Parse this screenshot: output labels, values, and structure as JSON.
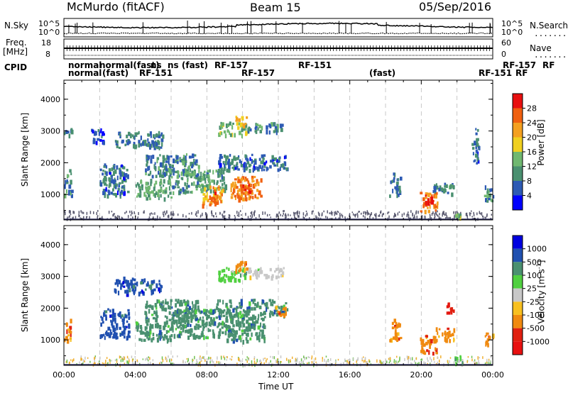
{
  "header": {
    "station": "McMurdo (fitACF)",
    "beam": "Beam 15",
    "date": "05/Sep/2016"
  },
  "side_labels": {
    "nsky": "N.Sky",
    "nsearch": "N.Search",
    "freq": "Freq.",
    "freq_unit": "[MHz]",
    "nave": "Nave",
    "cpid": "CPID",
    "dots": "......."
  },
  "tick_labels": {
    "ns_top": "10^5",
    "ns_bottom": "10^0",
    "nsr_top": "10^5",
    "nsr_bottom": "10^0",
    "freq_top": "18",
    "freq_bottom": "8",
    "nave_top": "60",
    "nave_bottom": "0"
  },
  "cpid": {
    "row1": [
      "normal",
      "normal(fast)",
      "ns",
      "ns (fast)",
      "RF-157",
      "RF-151",
      "RF-157",
      "RF"
    ],
    "row2": [
      "normal",
      "(fast)",
      "RF-151",
      "RF-157",
      "(fast)",
      "RF-151",
      "RF"
    ]
  },
  "colors": {
    "power": [
      "#0000ff",
      "#2d5ab4",
      "#4a9070",
      "#70b870",
      "#f0d020",
      "#f4a020",
      "#f06010",
      "#e81010"
    ],
    "velocity": [
      "#0000e0",
      "#2050b0",
      "#4a9070",
      "#50d040",
      "#c8c8c8",
      "#f8c020",
      "#f08a10",
      "#e02010",
      "#e81010"
    ],
    "noise": "#5a5a70"
  },
  "chart_data": [
    {
      "type": "heatmap",
      "name": "power",
      "xlabel": "",
      "ylabel": "Slant Range [km]",
      "x_range_hours": [
        0,
        24
      ],
      "ylim_km": [
        200,
        4600
      ],
      "yticks": [
        1000,
        2000,
        3000,
        4000
      ],
      "colorbar": {
        "label": "Power [dB]",
        "ticks": [
          4,
          8,
          12,
          16,
          20,
          24,
          28
        ],
        "range": [
          0,
          32
        ]
      },
      "blobs": [
        {
          "t0": 0.0,
          "t1": 0.4,
          "r0": 2800,
          "r1": 3100,
          "v": 8
        },
        {
          "t0": 0.0,
          "t1": 0.4,
          "r0": 1000,
          "r1": 1800,
          "v": 10
        },
        {
          "t0": 1.5,
          "t1": 2.2,
          "r0": 2600,
          "r1": 3100,
          "v": 6
        },
        {
          "t0": 2.0,
          "t1": 3.6,
          "r0": 1000,
          "r1": 2000,
          "v": 7
        },
        {
          "t0": 2.8,
          "t1": 5.5,
          "r0": 2500,
          "r1": 3000,
          "v": 8
        },
        {
          "t0": 4.0,
          "t1": 6.0,
          "r0": 900,
          "r1": 1500,
          "v": 12
        },
        {
          "t0": 4.5,
          "t1": 7.5,
          "r0": 1600,
          "r1": 2300,
          "v": 9
        },
        {
          "t0": 6.0,
          "t1": 9.0,
          "r0": 1100,
          "r1": 1800,
          "v": 11
        },
        {
          "t0": 7.7,
          "t1": 8.9,
          "r0": 700,
          "r1": 1300,
          "v": 22
        },
        {
          "t0": 8.2,
          "t1": 8.6,
          "r0": 800,
          "r1": 1100,
          "v": 27
        },
        {
          "t0": 9.3,
          "t1": 11.0,
          "r0": 900,
          "r1": 1600,
          "v": 24
        },
        {
          "t0": 9.8,
          "t1": 10.5,
          "r0": 1000,
          "r1": 1400,
          "v": 26
        },
        {
          "t0": 8.5,
          "t1": 12.5,
          "r0": 1800,
          "r1": 2300,
          "v": 7
        },
        {
          "t0": 8.6,
          "t1": 10.2,
          "r0": 2900,
          "r1": 3300,
          "v": 14
        },
        {
          "t0": 9.5,
          "t1": 10.2,
          "r0": 3200,
          "r1": 3500,
          "v": 20
        },
        {
          "t0": 10.2,
          "t1": 12.3,
          "r0": 3000,
          "r1": 3300,
          "v": 9
        },
        {
          "t0": 18.2,
          "t1": 18.8,
          "r0": 1000,
          "r1": 1700,
          "v": 8
        },
        {
          "t0": 19.9,
          "t1": 20.9,
          "r0": 500,
          "r1": 1100,
          "v": 24
        },
        {
          "t0": 20.2,
          "t1": 20.6,
          "r0": 700,
          "r1": 1000,
          "v": 28
        },
        {
          "t0": 20.6,
          "t1": 21.8,
          "r0": 1000,
          "r1": 1400,
          "v": 9
        },
        {
          "t0": 21.8,
          "t1": 22.2,
          "r0": 300,
          "r1": 500,
          "v": 14
        },
        {
          "t0": 22.8,
          "t1": 23.2,
          "r0": 2000,
          "r1": 3100,
          "v": 7
        },
        {
          "t0": 23.5,
          "t1": 24.0,
          "r0": 800,
          "r1": 1300,
          "v": 10
        }
      ]
    },
    {
      "type": "heatmap",
      "name": "velocity",
      "xlabel": "Time UT",
      "ylabel": "Slant Range [km]",
      "x_range_hours": [
        0,
        24
      ],
      "ylim_km": [
        200,
        4600
      ],
      "xticks": [
        "00:00",
        "04:00",
        "08:00",
        "12:00",
        "16:00",
        "20:00",
        "00:00"
      ],
      "yticks": [
        1000,
        2000,
        3000,
        4000
      ],
      "colorbar": {
        "label": "Velocity [m s^-1]",
        "ticks": [
          "1000",
          "500",
          "100",
          "25",
          "-25",
          "-100",
          "-500",
          "-1000"
        ]
      },
      "blobs": [
        {
          "t0": 0.0,
          "t1": 0.4,
          "r0": 1000,
          "r1": 1700,
          "v": 6
        },
        {
          "t0": 2.0,
          "t1": 3.6,
          "r0": 1100,
          "r1": 2000,
          "v": 1
        },
        {
          "t0": 2.8,
          "t1": 5.5,
          "r0": 2500,
          "r1": 3000,
          "v": 1
        },
        {
          "t0": 4.0,
          "t1": 6.0,
          "r0": 1000,
          "r1": 1600,
          "v": 2
        },
        {
          "t0": 4.5,
          "t1": 7.5,
          "r0": 1600,
          "r1": 2300,
          "v": 2
        },
        {
          "t0": 6.0,
          "t1": 9.5,
          "r0": 1100,
          "r1": 2000,
          "v": 2
        },
        {
          "t0": 9.0,
          "t1": 11.2,
          "r0": 1000,
          "r1": 1800,
          "v": 2
        },
        {
          "t0": 8.5,
          "t1": 12.5,
          "r0": 1800,
          "r1": 2300,
          "v": 2
        },
        {
          "t0": 11.8,
          "t1": 12.4,
          "r0": 1800,
          "r1": 2100,
          "v": 6
        },
        {
          "t0": 8.6,
          "t1": 10.2,
          "r0": 2900,
          "r1": 3300,
          "v": 3
        },
        {
          "t0": 9.5,
          "t1": 10.2,
          "r0": 3200,
          "r1": 3500,
          "v": 6
        },
        {
          "t0": 10.2,
          "t1": 12.3,
          "r0": 3000,
          "r1": 3300,
          "v": 4
        },
        {
          "t0": 18.2,
          "t1": 18.8,
          "r0": 1000,
          "r1": 1700,
          "v": 6
        },
        {
          "t0": 19.9,
          "t1": 20.9,
          "r0": 600,
          "r1": 1200,
          "v": 6
        },
        {
          "t0": 20.8,
          "t1": 21.8,
          "r0": 1000,
          "r1": 1400,
          "v": 6
        },
        {
          "t0": 21.4,
          "t1": 21.8,
          "r0": 1800,
          "r1": 2200,
          "v": 7
        },
        {
          "t0": 21.8,
          "t1": 22.3,
          "r0": 300,
          "r1": 600,
          "v": 3
        },
        {
          "t0": 23.5,
          "t1": 24.0,
          "r0": 900,
          "r1": 1300,
          "v": 6
        }
      ]
    }
  ]
}
